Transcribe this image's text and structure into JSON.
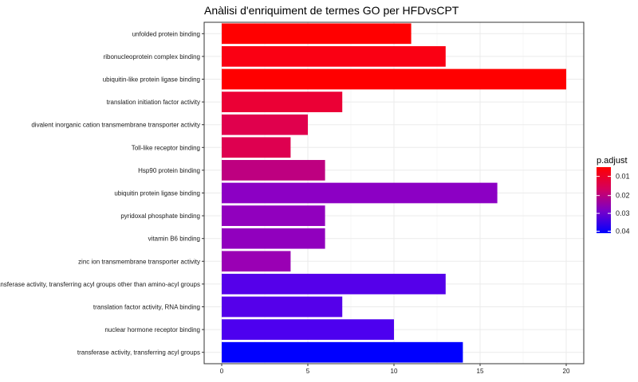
{
  "chart_data": {
    "type": "bar",
    "orientation": "horizontal",
    "title": "Anàlisi d'enriquiment de termes GO per HFDvsCPT",
    "xlabel": "",
    "ylabel": "",
    "xlim": [
      0,
      20
    ],
    "x_ticks": [
      0,
      5,
      10,
      15,
      20
    ],
    "grid": true,
    "legend_position": "right",
    "categories": [
      "unfolded protein binding",
      "ribonucleoprotein complex binding",
      "ubiquitin-like protein ligase binding",
      "translation initiation factor activity",
      "divalent inorganic cation transmembrane transporter activity",
      "Toll-like receptor binding",
      "Hsp90 protein binding",
      "ubiquitin protein ligase binding",
      "pyridoxal phosphate binding",
      "vitamin B6 binding",
      "zinc ion transmembrane transporter activity",
      "transferase activity, transferring acyl groups other than amino-acyl groups",
      "translation factor activity, RNA binding",
      "nuclear hormone receptor binding",
      "transferase activity, transferring acyl groups"
    ],
    "values": [
      11,
      13,
      20,
      7,
      5,
      4,
      6,
      16,
      6,
      6,
      4,
      13,
      7,
      10,
      14
    ],
    "colors": [
      "#ff0000",
      "#fa0013",
      "#ff0000",
      "#eb0035",
      "#e0004d",
      "#de0050",
      "#be0080",
      "#8c00c4",
      "#9100be",
      "#9100be",
      "#9a00b4",
      "#5500ea",
      "#5500ea",
      "#4d00ef",
      "#0000ff"
    ],
    "color_scale": {
      "name": "p.adjust",
      "ticks": [
        "0.01",
        "0.02",
        "0.03",
        "0.04"
      ],
      "high_color": "#ff0000",
      "low_color": "#0000ff"
    }
  }
}
